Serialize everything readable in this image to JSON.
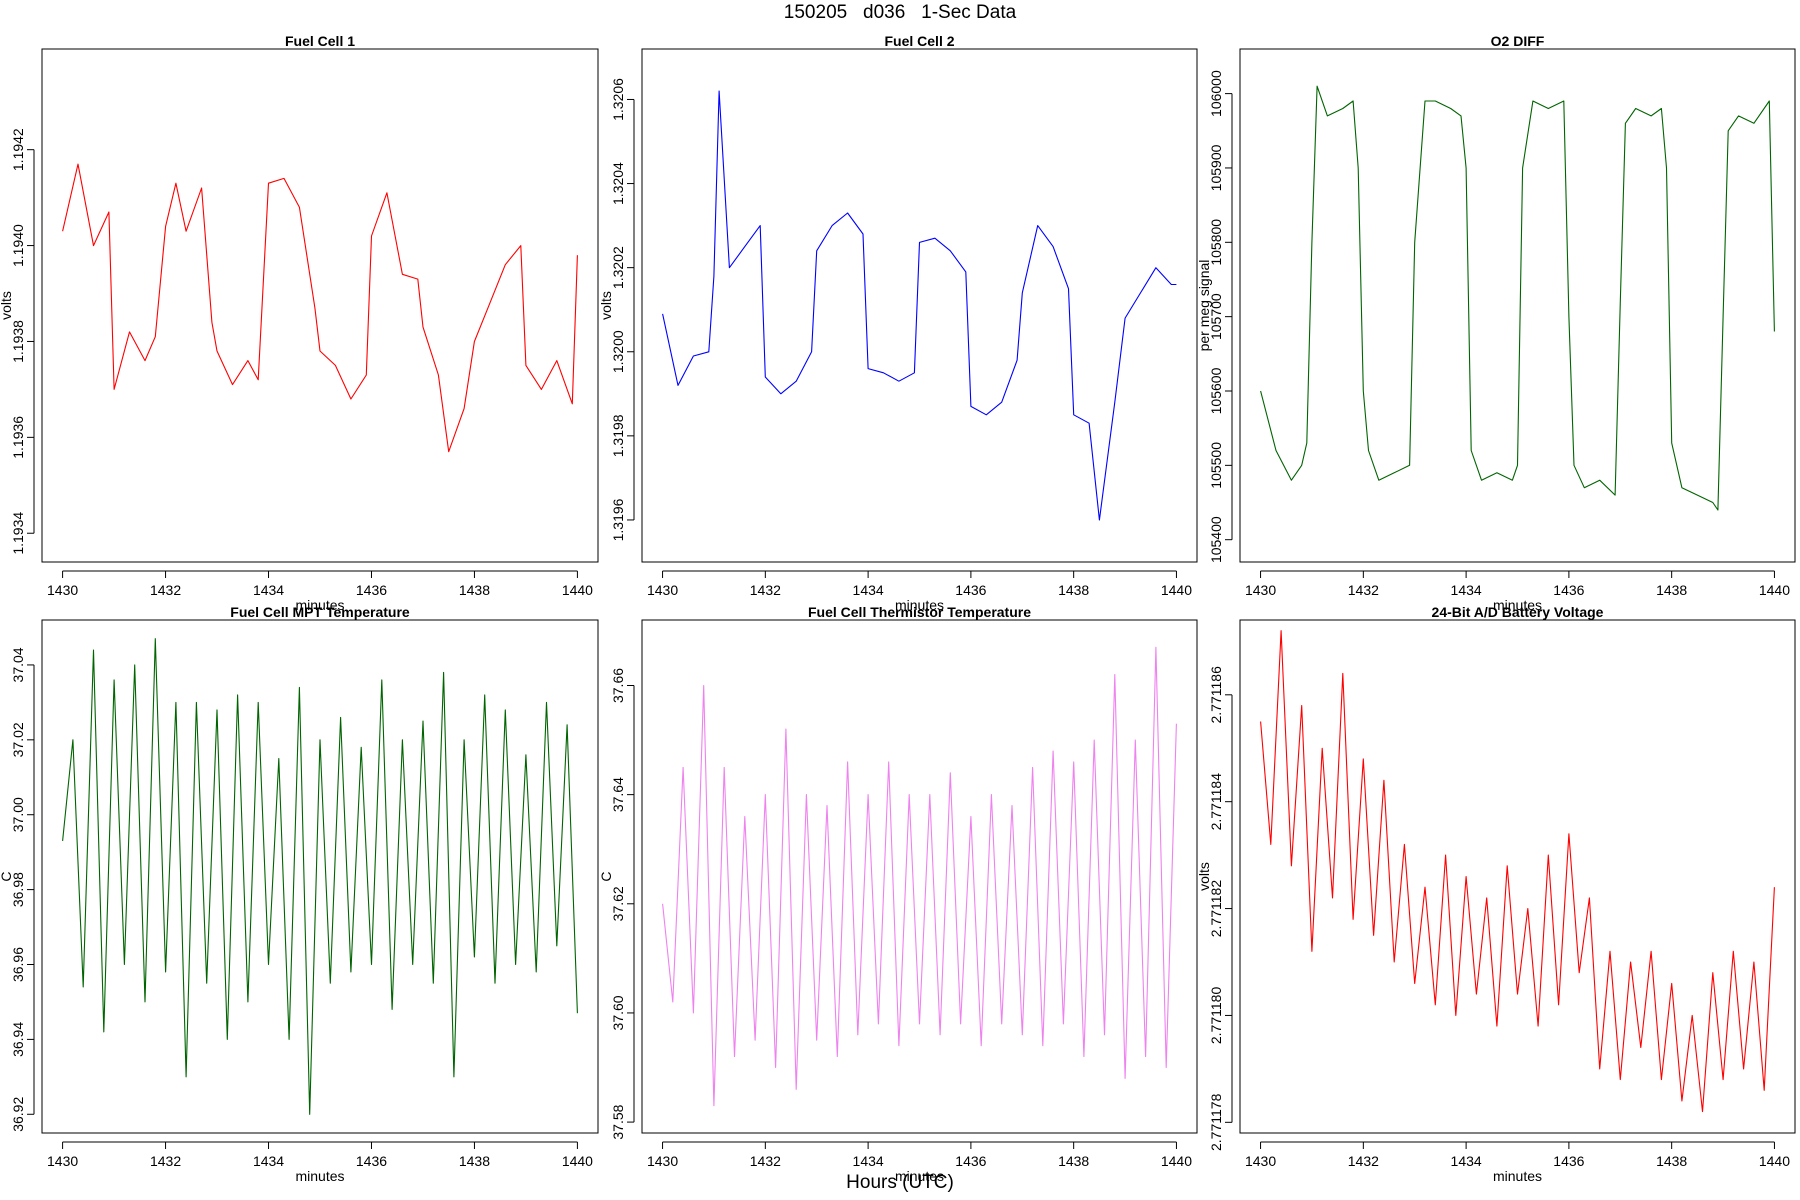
{
  "page": {
    "title": "150205   d036   1-Sec Data",
    "bottom_label": "Hours (UTC)"
  },
  "chart_data": [
    {
      "type": "line",
      "title": "Fuel Cell 1",
      "xlabel": "minutes",
      "ylabel": "volts",
      "color": "#ff0000",
      "xlim": [
        1429.6,
        1440.4
      ],
      "ylim": [
        1.19334,
        1.19441
      ],
      "xticks": [
        1430,
        1432,
        1434,
        1436,
        1438,
        1440
      ],
      "yticks": [
        1.1934,
        1.1936,
        1.1938,
        1.194,
        1.1942
      ],
      "ytick_labels": [
        "1.1934",
        "1.1936",
        "1.1938",
        "1.1940",
        "1.1942"
      ],
      "x": [
        1430.0,
        1430.3,
        1430.6,
        1430.9,
        1431.0,
        1431.3,
        1431.6,
        1431.8,
        1432.0,
        1432.2,
        1432.4,
        1432.7,
        1432.9,
        1433.0,
        1433.3,
        1433.6,
        1433.8,
        1434.0,
        1434.3,
        1434.6,
        1434.9,
        1435.0,
        1435.3,
        1435.6,
        1435.9,
        1436.0,
        1436.3,
        1436.6,
        1436.9,
        1437.0,
        1437.3,
        1437.5,
        1437.8,
        1438.0,
        1438.3,
        1438.6,
        1438.9,
        1439.0,
        1439.3,
        1439.6,
        1439.9,
        1440.0
      ],
      "y": [
        1.19403,
        1.19417,
        1.194,
        1.19407,
        1.1937,
        1.19382,
        1.19376,
        1.19381,
        1.19404,
        1.19413,
        1.19403,
        1.19412,
        1.19384,
        1.19378,
        1.19371,
        1.19376,
        1.19372,
        1.19413,
        1.19414,
        1.19408,
        1.19387,
        1.19378,
        1.19375,
        1.19368,
        1.19373,
        1.19402,
        1.19411,
        1.19394,
        1.19393,
        1.19383,
        1.19373,
        1.19357,
        1.19366,
        1.1938,
        1.19388,
        1.19396,
        1.194,
        1.19375,
        1.1937,
        1.19376,
        1.19367,
        1.19398
      ]
    },
    {
      "type": "line",
      "title": "Fuel Cell 2",
      "xlabel": "minutes",
      "ylabel": "volts",
      "color": "#0000ff",
      "xlim": [
        1429.6,
        1440.4
      ],
      "ylim": [
        1.3195,
        1.32072
      ],
      "xticks": [
        1430,
        1432,
        1434,
        1436,
        1438,
        1440
      ],
      "yticks": [
        1.3196,
        1.3198,
        1.32,
        1.3202,
        1.3204,
        1.3206
      ],
      "ytick_labels": [
        "1.3196",
        "1.3198",
        "1.3200",
        "1.3202",
        "1.3204",
        "1.3206"
      ],
      "x": [
        1430.0,
        1430.3,
        1430.6,
        1430.9,
        1431.0,
        1431.1,
        1431.3,
        1431.6,
        1431.9,
        1432.0,
        1432.3,
        1432.6,
        1432.9,
        1433.0,
        1433.3,
        1433.6,
        1433.9,
        1434.0,
        1434.3,
        1434.6,
        1434.9,
        1435.0,
        1435.3,
        1435.6,
        1435.9,
        1436.0,
        1436.3,
        1436.6,
        1436.9,
        1437.0,
        1437.3,
        1437.6,
        1437.9,
        1438.0,
        1438.3,
        1438.5,
        1438.8,
        1439.0,
        1439.3,
        1439.6,
        1439.9,
        1440.0
      ],
      "y": [
        1.32009,
        1.31992,
        1.31999,
        1.32,
        1.32018,
        1.32062,
        1.3202,
        1.32025,
        1.3203,
        1.31994,
        1.3199,
        1.31993,
        1.32,
        1.32024,
        1.3203,
        1.32033,
        1.32028,
        1.31996,
        1.31995,
        1.31993,
        1.31995,
        1.32026,
        1.32027,
        1.32024,
        1.32019,
        1.31987,
        1.31985,
        1.31988,
        1.31998,
        1.32014,
        1.3203,
        1.32025,
        1.32015,
        1.31985,
        1.31983,
        1.3196,
        1.31988,
        1.32008,
        1.32014,
        1.3202,
        1.32016,
        1.32016
      ]
    },
    {
      "type": "line",
      "title": "O2 DIFF",
      "xlabel": "minutes",
      "ylabel": "per meg signal",
      "color": "#006400",
      "xlim": [
        1429.6,
        1440.4
      ],
      "ylim": [
        105370,
        106060
      ],
      "xticks": [
        1430,
        1432,
        1434,
        1436,
        1438,
        1440
      ],
      "yticks": [
        105400,
        105500,
        105600,
        105700,
        105800,
        105900,
        106000
      ],
      "ytick_labels": [
        "105400",
        "105500",
        "105600",
        "105700",
        "105800",
        "105900",
        "106000"
      ],
      "x": [
        1430.0,
        1430.3,
        1430.6,
        1430.8,
        1430.9,
        1431.0,
        1431.1,
        1431.3,
        1431.6,
        1431.8,
        1431.9,
        1432.0,
        1432.1,
        1432.3,
        1432.6,
        1432.9,
        1433.0,
        1433.2,
        1433.4,
        1433.7,
        1433.9,
        1434.0,
        1434.1,
        1434.3,
        1434.6,
        1434.9,
        1435.0,
        1435.1,
        1435.3,
        1435.6,
        1435.9,
        1436.0,
        1436.1,
        1436.3,
        1436.6,
        1436.9,
        1437.0,
        1437.1,
        1437.3,
        1437.6,
        1437.8,
        1437.9,
        1438.0,
        1438.2,
        1438.5,
        1438.8,
        1438.9,
        1439.0,
        1439.1,
        1439.3,
        1439.6,
        1439.9,
        1440.0
      ],
      "y": [
        105600,
        105520,
        105480,
        105500,
        105530,
        105800,
        106010,
        105970,
        105980,
        105990,
        105900,
        105600,
        105520,
        105480,
        105490,
        105500,
        105800,
        105990,
        105990,
        105980,
        105970,
        105900,
        105520,
        105480,
        105490,
        105480,
        105500,
        105900,
        105990,
        105980,
        105990,
        105700,
        105500,
        105470,
        105480,
        105460,
        105720,
        105960,
        105980,
        105970,
        105980,
        105900,
        105530,
        105470,
        105460,
        105450,
        105440,
        105700,
        105950,
        105970,
        105960,
        105990,
        105680
      ]
    },
    {
      "type": "line",
      "title": "Fuel Cell MPT Temperature",
      "xlabel": "minutes",
      "ylabel": "C",
      "color": "#006400",
      "xlim": [
        1429.6,
        1440.4
      ],
      "ylim": [
        36.915,
        37.052
      ],
      "xticks": [
        1430,
        1432,
        1434,
        1436,
        1438,
        1440
      ],
      "yticks": [
        36.92,
        36.94,
        36.96,
        36.98,
        37.0,
        37.02,
        37.04
      ],
      "ytick_labels": [
        "36.92",
        "36.94",
        "36.96",
        "36.98",
        "37.00",
        "37.02",
        "37.04"
      ],
      "x": [
        1430.0,
        1430.2,
        1430.4,
        1430.6,
        1430.8,
        1431.0,
        1431.2,
        1431.4,
        1431.6,
        1431.8,
        1432.0,
        1432.2,
        1432.4,
        1432.6,
        1432.8,
        1433.0,
        1433.2,
        1433.4,
        1433.6,
        1433.8,
        1434.0,
        1434.2,
        1434.4,
        1434.6,
        1434.8,
        1435.0,
        1435.2,
        1435.4,
        1435.6,
        1435.8,
        1436.0,
        1436.2,
        1436.4,
        1436.6,
        1436.8,
        1437.0,
        1437.2,
        1437.4,
        1437.6,
        1437.8,
        1438.0,
        1438.2,
        1438.4,
        1438.6,
        1438.8,
        1439.0,
        1439.2,
        1439.4,
        1439.6,
        1439.8,
        1440.0
      ],
      "y": [
        36.993,
        37.02,
        36.954,
        37.044,
        36.942,
        37.036,
        36.96,
        37.04,
        36.95,
        37.047,
        36.958,
        37.03,
        36.93,
        37.03,
        36.955,
        37.028,
        36.94,
        37.032,
        36.95,
        37.03,
        36.96,
        37.015,
        36.94,
        37.034,
        36.92,
        37.02,
        36.955,
        37.026,
        36.958,
        37.018,
        36.96,
        37.036,
        36.948,
        37.02,
        36.96,
        37.025,
        36.955,
        37.038,
        36.93,
        37.02,
        36.962,
        37.032,
        36.955,
        37.028,
        36.96,
        37.016,
        36.958,
        37.03,
        36.965,
        37.024,
        36.947
      ]
    },
    {
      "type": "line",
      "title": "Fuel Cell Thermistor Temperature",
      "xlabel": "minutes",
      "ylabel": "C",
      "color": "#ee82ee",
      "xlim": [
        1429.6,
        1440.4
      ],
      "ylim": [
        37.578,
        37.672
      ],
      "xticks": [
        1430,
        1432,
        1434,
        1436,
        1438,
        1440
      ],
      "yticks": [
        37.58,
        37.6,
        37.62,
        37.64,
        37.66
      ],
      "ytick_labels": [
        "37.58",
        "37.60",
        "37.62",
        "37.64",
        "37.66"
      ],
      "x": [
        1430.0,
        1430.2,
        1430.4,
        1430.6,
        1430.8,
        1431.0,
        1431.2,
        1431.4,
        1431.6,
        1431.8,
        1432.0,
        1432.2,
        1432.4,
        1432.6,
        1432.8,
        1433.0,
        1433.2,
        1433.4,
        1433.6,
        1433.8,
        1434.0,
        1434.2,
        1434.4,
        1434.6,
        1434.8,
        1435.0,
        1435.2,
        1435.4,
        1435.6,
        1435.8,
        1436.0,
        1436.2,
        1436.4,
        1436.6,
        1436.8,
        1437.0,
        1437.2,
        1437.4,
        1437.6,
        1437.8,
        1438.0,
        1438.2,
        1438.4,
        1438.6,
        1438.8,
        1439.0,
        1439.2,
        1439.4,
        1439.6,
        1439.8,
        1440.0
      ],
      "y": [
        37.62,
        37.602,
        37.645,
        37.6,
        37.66,
        37.583,
        37.645,
        37.592,
        37.636,
        37.595,
        37.64,
        37.59,
        37.652,
        37.586,
        37.64,
        37.595,
        37.638,
        37.592,
        37.646,
        37.596,
        37.64,
        37.598,
        37.646,
        37.594,
        37.64,
        37.598,
        37.64,
        37.596,
        37.644,
        37.598,
        37.636,
        37.594,
        37.64,
        37.598,
        37.638,
        37.596,
        37.645,
        37.594,
        37.648,
        37.598,
        37.646,
        37.592,
        37.65,
        37.596,
        37.662,
        37.588,
        37.65,
        37.592,
        37.667,
        37.59,
        37.653
      ]
    },
    {
      "type": "line",
      "title": "24-Bit A/D Battery Voltage",
      "xlabel": "minutes",
      "ylabel": "volts",
      "color": "#ff0000",
      "xlim": [
        1429.6,
        1440.4
      ],
      "ylim": [
        2.7711778,
        2.7711874
      ],
      "xticks": [
        1430,
        1432,
        1434,
        1436,
        1438,
        1440
      ],
      "yticks": [
        2.771178,
        2.77118,
        2.771182,
        2.771184,
        2.771186
      ],
      "ytick_labels": [
        "2.771178",
        "2.771180",
        "2.771182",
        "2.771184",
        "2.771186"
      ],
      "x": [
        1430.0,
        1430.2,
        1430.4,
        1430.6,
        1430.8,
        1431.0,
        1431.2,
        1431.4,
        1431.6,
        1431.8,
        1432.0,
        1432.2,
        1432.4,
        1432.6,
        1432.8,
        1433.0,
        1433.2,
        1433.4,
        1433.6,
        1433.8,
        1434.0,
        1434.2,
        1434.4,
        1434.6,
        1434.8,
        1435.0,
        1435.2,
        1435.4,
        1435.6,
        1435.8,
        1436.0,
        1436.2,
        1436.4,
        1436.6,
        1436.8,
        1437.0,
        1437.2,
        1437.4,
        1437.6,
        1437.8,
        1438.0,
        1438.2,
        1438.4,
        1438.6,
        1438.8,
        1439.0,
        1439.2,
        1439.4,
        1439.6,
        1439.8,
        1440.0
      ],
      "y": [
        2.7711855,
        2.7711832,
        2.7711872,
        2.7711828,
        2.7711858,
        2.7711812,
        2.771185,
        2.7711822,
        2.7711864,
        2.7711818,
        2.7711848,
        2.7711815,
        2.7711844,
        2.771181,
        2.7711832,
        2.7711806,
        2.7711824,
        2.7711802,
        2.771183,
        2.77118,
        2.7711826,
        2.7711804,
        2.7711822,
        2.7711798,
        2.7711828,
        2.7711804,
        2.771182,
        2.7711798,
        2.771183,
        2.7711802,
        2.7711834,
        2.7711808,
        2.7711822,
        2.771179,
        2.7711812,
        2.7711788,
        2.771181,
        2.7711794,
        2.7711812,
        2.7711788,
        2.7711806,
        2.7711784,
        2.77118,
        2.7711782,
        2.7711808,
        2.7711788,
        2.7711812,
        2.771179,
        2.771181,
        2.7711786,
        2.7711824
      ]
    }
  ]
}
